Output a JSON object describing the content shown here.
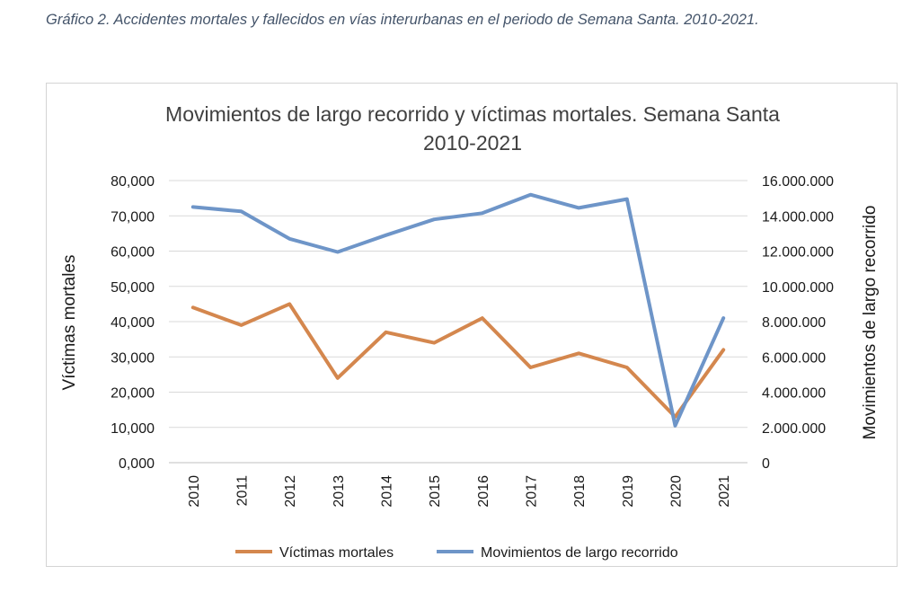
{
  "caption": "Gráfico 2. Accidentes mortales y fallecidos en vías interurbanas en el periodo de Semana Santa. 2010-2021.",
  "chart_data": {
    "type": "line",
    "title_line1": "Movimientos de largo recorrido y víctimas mortales. Semana Santa",
    "title_line2": "2010-2021",
    "ylabel_left": "Víctimas mortales",
    "ylabel_right": "Movimientos de largo recorrido",
    "x": [
      "2010",
      "2011",
      "2012",
      "2013",
      "2014",
      "2015",
      "2016",
      "2017",
      "2018",
      "2019",
      "2020",
      "2021"
    ],
    "y_left_range": [
      0,
      80
    ],
    "y_left_ticks": [
      "0,000",
      "10,000",
      "20,000",
      "30,000",
      "40,000",
      "50,000",
      "60,000",
      "70,000",
      "80,000"
    ],
    "y_right_range": [
      0,
      16000000
    ],
    "y_right_ticks": [
      "0",
      "2.000.000",
      "4.000.000",
      "6.000.000",
      "8.000.000",
      "10.000.000",
      "12.000.000",
      "14.000.000",
      "16.000.000"
    ],
    "grid": true,
    "legend_position": "bottom",
    "series": [
      {
        "name": "Víctimas mortales",
        "axis": "left",
        "color": "#d4874e",
        "values": [
          44,
          39,
          45,
          24,
          37,
          34,
          41,
          27,
          31,
          27,
          13,
          32
        ]
      },
      {
        "name": "Movimientos de largo recorrido",
        "axis": "right",
        "color": "#6e95c8",
        "values": [
          14500000,
          14250000,
          12700000,
          11950000,
          12900000,
          13800000,
          14150000,
          15200000,
          14450000,
          14950000,
          2100000,
          8200000
        ]
      }
    ]
  }
}
